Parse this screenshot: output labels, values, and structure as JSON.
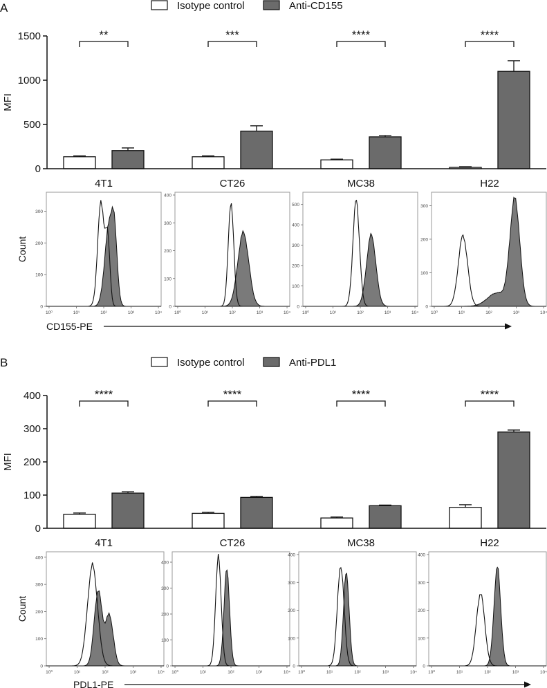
{
  "colors": {
    "isotype_fill": "#ffffff",
    "anti_fill": "#6b6b6b",
    "hist_fill": "#7a7a7a",
    "stroke": "#111111",
    "frame": "#999999"
  },
  "chart_data": [
    {
      "type": "bar",
      "panel_label": "A",
      "legend": [
        "Isotype control",
        "Anti-CD155"
      ],
      "legend_position": "top-center",
      "ylabel": "MFI",
      "ylim": [
        0,
        1500
      ],
      "yticks": [
        "0",
        "500",
        "1000",
        "1500"
      ],
      "categories": [
        "4T1",
        "CT26",
        "MC38",
        "H22"
      ],
      "series": [
        {
          "name": "Isotype control",
          "values": [
            135,
            135,
            100,
            15
          ],
          "errors": [
            10,
            10,
            8,
            8
          ]
        },
        {
          "name": "Anti-CD155",
          "values": [
            205,
            425,
            360,
            1100
          ],
          "errors": [
            30,
            60,
            15,
            120
          ]
        }
      ],
      "significance": [
        "**",
        "***",
        "****",
        "****"
      ]
    },
    {
      "type": "histogram",
      "panel_label": "A",
      "xlabel": "CD155-PE",
      "ylabel": "Count",
      "xtick_labels": [
        "10⁰",
        "10¹",
        "10²",
        "10³",
        "10⁴"
      ],
      "panels": [
        {
          "name": "4T1",
          "yticks": [
            "0",
            "100",
            "200",
            "300"
          ],
          "ymax": 360,
          "isotype": {
            "mu": 1.9,
            "sigma": 0.12,
            "peak": 330,
            "sub": [
              {
                "mu": 2.15,
                "sigma": 0.08,
                "peak": 200
              }
            ]
          },
          "anti": {
            "mu": 2.2,
            "sigma": 0.16,
            "peak": 255,
            "sub": [
              {
                "mu": 2.4,
                "sigma": 0.1,
                "peak": 160
              }
            ]
          }
        },
        {
          "name": "CT26",
          "yticks": [
            "0",
            "100",
            "200",
            "300",
            "400"
          ],
          "ymax": 410,
          "isotype": {
            "mu": 1.95,
            "sigma": 0.1,
            "peak": 375,
            "sub": []
          },
          "anti": {
            "mu": 2.4,
            "sigma": 0.2,
            "peak": 265,
            "sub": []
          }
        },
        {
          "name": "MC38",
          "yticks": [
            "0",
            "100",
            "200",
            "300",
            "400",
            "500"
          ],
          "ymax": 560,
          "isotype": {
            "mu": 1.85,
            "sigma": 0.12,
            "peak": 520,
            "sub": []
          },
          "anti": {
            "mu": 2.4,
            "sigma": 0.17,
            "peak": 350,
            "sub": []
          }
        },
        {
          "name": "H22",
          "yticks": [
            "0",
            "100",
            "200",
            "300"
          ],
          "ymax": 340,
          "isotype": {
            "mu": 1.05,
            "sigma": 0.17,
            "peak": 210,
            "sub": []
          },
          "anti": {
            "mu": 2.95,
            "sigma": 0.18,
            "peak": 315,
            "sub": [
              {
                "mu": 2.3,
                "sigma": 0.35,
                "peak": 40
              }
            ]
          }
        }
      ]
    },
    {
      "type": "bar",
      "panel_label": "B",
      "legend": [
        "Isotype control",
        "Anti-PDL1"
      ],
      "legend_position": "top-center",
      "ylabel": "MFI",
      "ylim": [
        0,
        400
      ],
      "yticks": [
        "0",
        "100",
        "200",
        "300",
        "400"
      ],
      "categories": [
        "4T1",
        "CT26",
        "MC38",
        "H22"
      ],
      "series": [
        {
          "name": "Isotype control",
          "values": [
            42,
            45,
            31,
            63
          ],
          "errors": [
            4,
            3,
            3,
            8
          ]
        },
        {
          "name": "Anti-PDL1",
          "values": [
            106,
            93,
            68,
            290
          ],
          "errors": [
            4,
            3,
            2,
            6
          ]
        }
      ],
      "significance": [
        "****",
        "****",
        "****",
        "****"
      ]
    },
    {
      "type": "histogram",
      "panel_label": "B",
      "xlabel": "PDL1-PE",
      "ylabel": "Count",
      "xtick_labels": [
        "10⁰",
        "10¹",
        "10²",
        "10³",
        "10⁴"
      ],
      "panels": [
        {
          "name": "4T1",
          "yticks": [
            "0",
            "100",
            "200",
            "300",
            "400"
          ],
          "ymax": 420,
          "isotype": {
            "mu": 1.55,
            "sigma": 0.18,
            "peak": 370,
            "sub": []
          },
          "anti": {
            "mu": 1.75,
            "sigma": 0.14,
            "peak": 275,
            "sub": [
              {
                "mu": 2.15,
                "sigma": 0.14,
                "peak": 185
              }
            ]
          }
        },
        {
          "name": "CT26",
          "yticks": [
            "0",
            "100",
            "200",
            "300",
            "400"
          ],
          "ymax": 440,
          "isotype": {
            "mu": 1.55,
            "sigma": 0.1,
            "peak": 420,
            "sub": []
          },
          "anti": {
            "mu": 1.85,
            "sigma": 0.1,
            "peak": 370,
            "sub": []
          }
        },
        {
          "name": "MC38",
          "yticks": [
            "0",
            "100",
            "200",
            "300",
            "400"
          ],
          "ymax": 410,
          "isotype": {
            "mu": 1.4,
            "sigma": 0.12,
            "peak": 360,
            "sub": []
          },
          "anti": {
            "mu": 1.6,
            "sigma": 0.1,
            "peak": 335,
            "sub": []
          }
        },
        {
          "name": "H22",
          "yticks": [
            "0",
            "100",
            "200",
            "300",
            "400"
          ],
          "ymax": 410,
          "isotype": {
            "mu": 1.75,
            "sigma": 0.15,
            "peak": 260,
            "sub": []
          },
          "anti": {
            "mu": 2.35,
            "sigma": 0.12,
            "peak": 355,
            "sub": []
          }
        }
      ]
    }
  ]
}
